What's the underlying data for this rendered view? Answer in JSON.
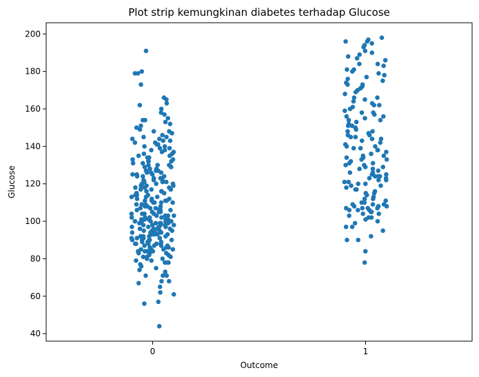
{
  "chart_data": {
    "type": "scatter",
    "subtype": "strip",
    "title": "Plot strip kemungkinan diabetes terhadap Glucose",
    "xlabel": "Outcome",
    "ylabel": "Glucose",
    "categories": [
      "0",
      "1"
    ],
    "ylim": [
      36,
      206
    ],
    "yticks": [
      40,
      60,
      80,
      100,
      120,
      140,
      160,
      180,
      200
    ],
    "grid": false,
    "legend": "none",
    "marker_color": "#1f77b4",
    "series": [
      {
        "category": "0",
        "values": [
          44,
          56,
          57,
          61,
          62,
          65,
          67,
          68,
          68,
          71,
          71,
          71,
          73,
          74,
          75,
          76,
          77,
          78,
          78,
          78,
          79,
          79,
          80,
          80,
          81,
          81,
          81,
          82,
          82,
          83,
          83,
          83,
          84,
          84,
          84,
          84,
          85,
          85,
          85,
          85,
          86,
          86,
          86,
          87,
          87,
          87,
          87,
          88,
          88,
          88,
          88,
          88,
          89,
          89,
          89,
          89,
          90,
          90,
          90,
          90,
          90,
          91,
          91,
          91,
          91,
          92,
          92,
          92,
          92,
          93,
          93,
          93,
          93,
          94,
          94,
          94,
          94,
          95,
          95,
          95,
          95,
          95,
          96,
          96,
          96,
          96,
          97,
          97,
          97,
          97,
          97,
          98,
          98,
          98,
          98,
          98,
          99,
          99,
          99,
          99,
          99,
          99,
          100,
          100,
          100,
          100,
          100,
          100,
          101,
          101,
          101,
          101,
          101,
          102,
          102,
          102,
          102,
          102,
          103,
          103,
          103,
          103,
          104,
          104,
          104,
          104,
          105,
          105,
          105,
          105,
          106,
          106,
          106,
          106,
          107,
          107,
          107,
          107,
          108,
          108,
          108,
          108,
          109,
          109,
          109,
          110,
          110,
          110,
          110,
          111,
          111,
          111,
          111,
          112,
          112,
          112,
          113,
          113,
          113,
          114,
          114,
          114,
          115,
          115,
          115,
          116,
          116,
          116,
          117,
          117,
          117,
          118,
          118,
          118,
          119,
          119,
          119,
          120,
          120,
          120,
          120,
          121,
          121,
          121,
          122,
          122,
          122,
          123,
          123,
          123,
          124,
          124,
          124,
          125,
          125,
          125,
          126,
          126,
          126,
          127,
          127,
          127,
          128,
          128,
          128,
          129,
          129,
          129,
          130,
          130,
          130,
          131,
          131,
          132,
          132,
          132,
          133,
          133,
          134,
          134,
          135,
          135,
          136,
          136,
          137,
          137,
          138,
          138,
          139,
          139,
          140,
          140,
          141,
          141,
          142,
          142,
          143,
          143,
          144,
          144,
          145,
          145,
          146,
          147,
          148,
          148,
          149,
          150,
          151,
          152,
          153,
          154,
          154,
          155,
          157,
          158,
          160,
          162,
          163,
          165,
          166,
          173,
          179,
          179,
          180,
          191
        ]
      },
      {
        "category": "1",
        "values": [
          78,
          84,
          90,
          90,
          92,
          95,
          97,
          97,
          99,
          100,
          101,
          102,
          102,
          103,
          104,
          104,
          105,
          105,
          106,
          106,
          106,
          107,
          107,
          107,
          107,
          108,
          108,
          108,
          108,
          109,
          109,
          109,
          110,
          110,
          111,
          112,
          112,
          113,
          114,
          115,
          115,
          116,
          117,
          117,
          118,
          119,
          119,
          120,
          120,
          121,
          121,
          122,
          122,
          123,
          123,
          124,
          124,
          124,
          125,
          125,
          126,
          126,
          127,
          128,
          128,
          129,
          129,
          130,
          130,
          131,
          131,
          132,
          133,
          133,
          134,
          134,
          135,
          135,
          136,
          137,
          138,
          138,
          139,
          139,
          140,
          140,
          141,
          142,
          143,
          144,
          144,
          145,
          145,
          146,
          146,
          147,
          148,
          148,
          149,
          150,
          151,
          151,
          152,
          153,
          154,
          154,
          155,
          156,
          156,
          157,
          158,
          158,
          159,
          160,
          161,
          162,
          162,
          163,
          164,
          165,
          166,
          166,
          168,
          169,
          170,
          171,
          172,
          173,
          173,
          174,
          175,
          176,
          177,
          178,
          179,
          180,
          181,
          181,
          183,
          184,
          184,
          186,
          187,
          188,
          189,
          190,
          191,
          193,
          194,
          195,
          196,
          196,
          197,
          198
        ]
      }
    ]
  }
}
